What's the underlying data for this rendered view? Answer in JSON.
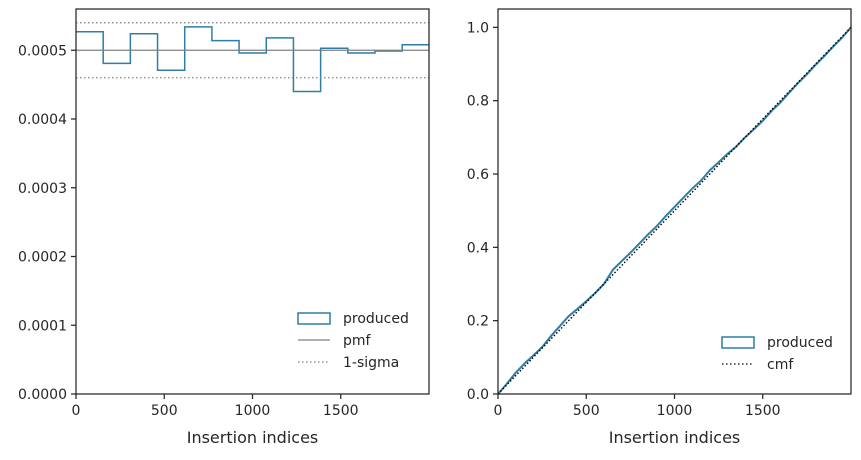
{
  "chart_data": [
    {
      "type": "step",
      "xlabel": "Insertion indices",
      "ylabel": "",
      "xlim": [
        0,
        2000
      ],
      "ylim": [
        0,
        0.00056
      ],
      "xticks": [
        0,
        500,
        1000,
        1500
      ],
      "xtick_labels": [
        "0",
        "500",
        "1000",
        "1500"
      ],
      "yticks": [
        0,
        0.0001,
        0.0002,
        0.0003,
        0.0004,
        0.0005
      ],
      "ytick_labels": [
        "0.0000",
        "0.0001",
        "0.0002",
        "0.0003",
        "0.0004",
        "0.0005"
      ],
      "legend_position": "lower-right",
      "series": [
        {
          "name": "produced",
          "style": "step",
          "color": "#2e7ea6",
          "bin_edges": [
            0,
            154,
            308,
            462,
            616,
            770,
            924,
            1078,
            1232,
            1386,
            1540,
            1694,
            1848,
            2000
          ],
          "values": [
            0.000527,
            0.000481,
            0.000524,
            0.000471,
            0.000534,
            0.000514,
            0.000496,
            0.000518,
            0.00044,
            0.000503,
            0.000496,
            0.000499,
            0.000508
          ]
        },
        {
          "name": "pmf",
          "style": "solid-hline",
          "color": "#808080",
          "value": 0.0005
        },
        {
          "name": "1-sigma",
          "style": "dotted-hlines",
          "color": "#808080",
          "values": [
            0.00054,
            0.00046
          ]
        }
      ]
    },
    {
      "type": "line",
      "xlabel": "Insertion indices",
      "ylabel": "",
      "xlim": [
        0,
        2000
      ],
      "ylim": [
        0,
        1.05
      ],
      "xticks": [
        0,
        500,
        1000,
        1500
      ],
      "xtick_labels": [
        "0",
        "500",
        "1000",
        "1500"
      ],
      "yticks": [
        0,
        0.2,
        0.4,
        0.6,
        0.8,
        1.0
      ],
      "ytick_labels": [
        "0.0",
        "0.2",
        "0.4",
        "0.6",
        "0.8",
        "1.0"
      ],
      "legend_position": "lower-right",
      "series": [
        {
          "name": "produced",
          "style": "solid",
          "color": "#2e7ea6",
          "x": [
            0,
            50,
            100,
            150,
            200,
            250,
            300,
            350,
            400,
            450,
            500,
            550,
            600,
            650,
            700,
            750,
            800,
            850,
            900,
            950,
            1000,
            1050,
            1100,
            1150,
            1200,
            1250,
            1300,
            1350,
            1400,
            1450,
            1500,
            1550,
            1600,
            1650,
            1700,
            1750,
            1800,
            1850,
            1900,
            1950,
            2000
          ],
          "y": [
            0,
            0.028,
            0.058,
            0.083,
            0.105,
            0.128,
            0.158,
            0.185,
            0.212,
            0.232,
            0.253,
            0.275,
            0.3,
            0.338,
            0.362,
            0.385,
            0.41,
            0.435,
            0.458,
            0.485,
            0.51,
            0.535,
            0.56,
            0.582,
            0.61,
            0.632,
            0.655,
            0.675,
            0.7,
            0.722,
            0.745,
            0.772,
            0.795,
            0.822,
            0.848,
            0.872,
            0.898,
            0.922,
            0.948,
            0.972,
            1.0
          ]
        },
        {
          "name": "cmf",
          "style": "dotted",
          "color": "#000000",
          "x": [
            0,
            2000
          ],
          "y": [
            0,
            1.0
          ]
        }
      ]
    }
  ]
}
